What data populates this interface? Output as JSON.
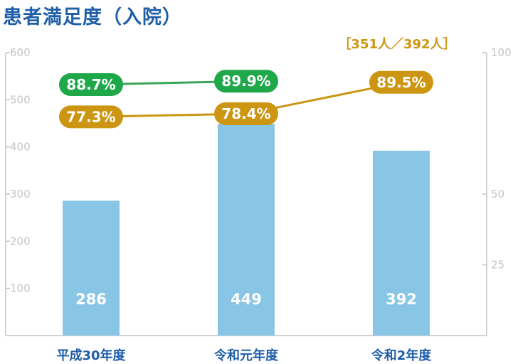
{
  "title": "患者満足度（入院）",
  "colors": {
    "title": "#1f5ea8",
    "bar": "#89c6e6",
    "green": "#3aa556",
    "green_pill": "#1fa84a",
    "gold": "#cc9512",
    "axis": "#c4c4c4",
    "category": "#1f5ea8"
  },
  "chart_data": {
    "type": "bar+line",
    "categories": [
      "平成30年度",
      "令和元年度",
      "令和2年度"
    ],
    "bars": {
      "values": [
        286,
        449,
        392
      ],
      "axis": "left"
    },
    "series": [
      {
        "values": [
          88.7,
          89.9,
          null
        ],
        "labels": [
          "88.7%",
          "89.9%",
          ""
        ],
        "axis": "right",
        "color": "#3aa556"
      },
      {
        "values": [
          77.3,
          78.4,
          89.5
        ],
        "labels": [
          "77.3%",
          "78.4%",
          "89.5%"
        ],
        "axis": "right",
        "color": "#cc9512"
      }
    ],
    "left_axis": {
      "ylim": [
        0,
        600
      ],
      "ticks": [
        100,
        200,
        300,
        400,
        500,
        600
      ]
    },
    "right_axis": {
      "ylim": [
        0,
        100
      ],
      "ticks": [
        25,
        50,
        100
      ]
    },
    "annotation": "［351人／392人］",
    "grid": false
  }
}
